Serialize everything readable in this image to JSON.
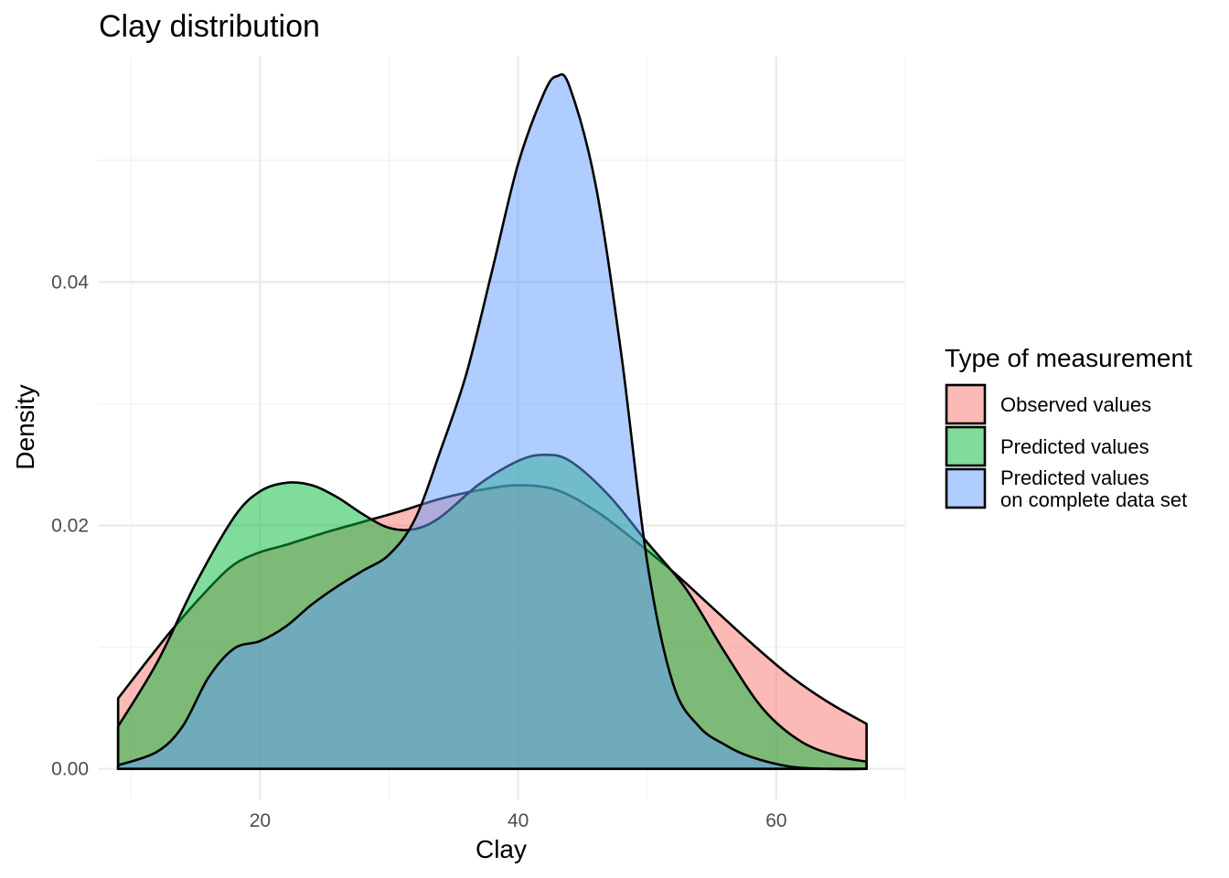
{
  "chart_data": {
    "type": "area",
    "title": "Clay distribution",
    "xlabel": "Clay",
    "ylabel": "Density",
    "xlim": [
      7.5,
      70
    ],
    "ylim": [
      -0.0025,
      0.0585
    ],
    "x_ticks": [
      20,
      40,
      60
    ],
    "x_tick_labels": [
      "20",
      "40",
      "60"
    ],
    "x_minor_ticks": [
      10,
      30,
      50,
      70
    ],
    "y_ticks": [
      0.0,
      0.02,
      0.04
    ],
    "y_tick_labels": [
      "0.00",
      "0.02",
      "0.04"
    ],
    "y_minor_ticks": [
      0.01,
      0.03,
      0.05
    ],
    "grid": true,
    "legend": {
      "title": "Type of measurement",
      "position": "right"
    },
    "series": [
      {
        "name": "Observed values",
        "color": "#F8766D",
        "x": [
          9,
          13,
          16,
          18,
          20,
          22,
          25,
          28,
          31,
          34,
          37,
          40,
          43,
          46,
          49,
          52,
          55,
          58,
          61,
          64,
          67
        ],
        "y": [
          0.0058,
          0.0112,
          0.0148,
          0.0168,
          0.0178,
          0.0184,
          0.0194,
          0.0203,
          0.0212,
          0.0222,
          0.0229,
          0.0233,
          0.0229,
          0.0212,
          0.0188,
          0.0162,
          0.0133,
          0.0104,
          0.0077,
          0.0055,
          0.0037
        ]
      },
      {
        "name": "Predicted values",
        "color": "#00BA38",
        "x": [
          9,
          12,
          15,
          18,
          20,
          22,
          24,
          26,
          28,
          30,
          32,
          34,
          37,
          40,
          42,
          44,
          47,
          50,
          53,
          56,
          59,
          62,
          65,
          67
        ],
        "y": [
          0.0035,
          0.0087,
          0.0152,
          0.0207,
          0.0228,
          0.0235,
          0.0233,
          0.0223,
          0.0209,
          0.0198,
          0.0197,
          0.0207,
          0.0234,
          0.0253,
          0.0258,
          0.0253,
          0.0225,
          0.0186,
          0.0148,
          0.0096,
          0.0049,
          0.0022,
          0.001,
          0.0006
        ]
      },
      {
        "name": "Predicted values\non complete data set",
        "color": "#619CFF",
        "x": [
          9,
          12,
          14,
          16,
          18,
          20,
          22,
          24,
          26,
          28,
          30,
          32,
          34,
          36,
          38,
          40,
          42,
          43,
          44,
          46,
          48,
          50,
          52,
          54,
          56,
          58,
          61,
          64,
          67
        ],
        "y": [
          0.0003,
          0.0014,
          0.0035,
          0.0075,
          0.0099,
          0.0105,
          0.0117,
          0.0135,
          0.015,
          0.0163,
          0.0176,
          0.0205,
          0.0262,
          0.0325,
          0.041,
          0.0497,
          0.0555,
          0.0569,
          0.056,
          0.048,
          0.034,
          0.017,
          0.007,
          0.0035,
          0.002,
          0.001,
          0.0002,
          0.0,
          0.0
        ]
      }
    ]
  }
}
